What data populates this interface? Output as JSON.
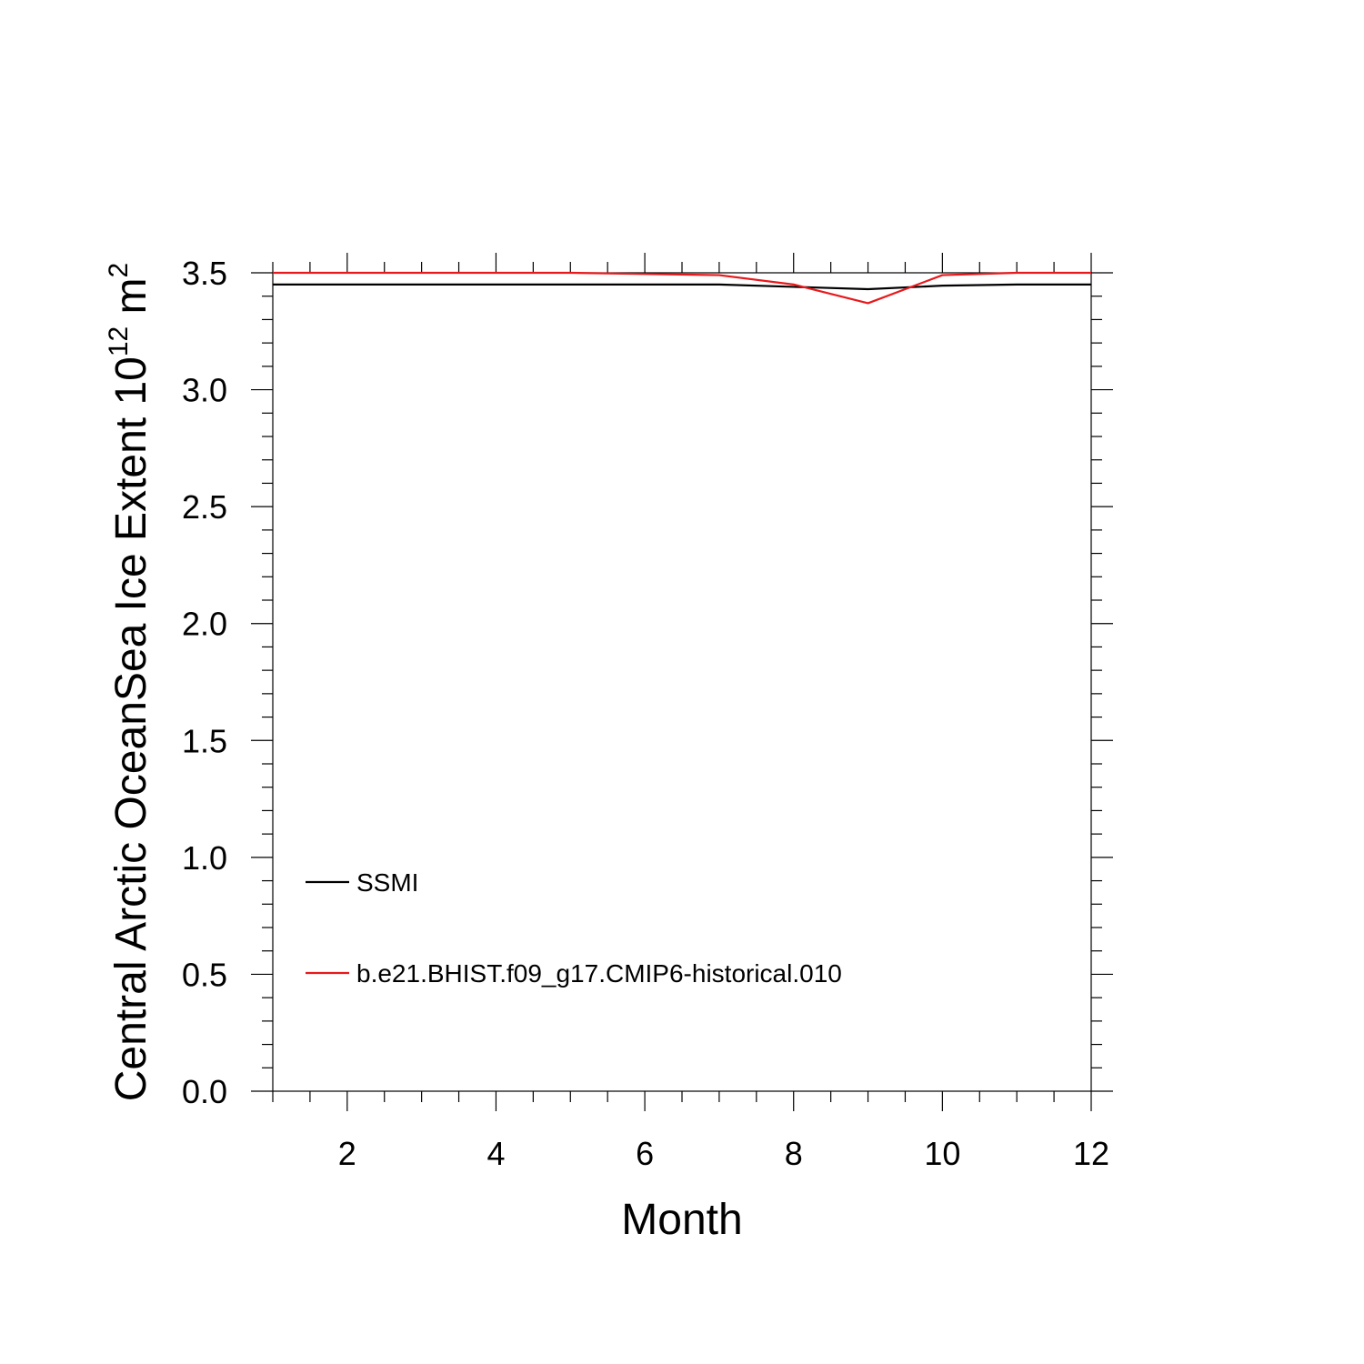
{
  "chart_data": {
    "type": "line",
    "title": "",
    "xlabel": "Month",
    "ylabel": "Central Arctic OceanSea Ice Extent 10",
    "ylabel_sup": "12",
    "ylabel_unit": " m",
    "ylabel_unit_sup": "2",
    "xlim": [
      1,
      12
    ],
    "ylim": [
      0,
      3.5
    ],
    "x_ticks": [
      2,
      4,
      6,
      8,
      10,
      12
    ],
    "x_tick_labels": [
      "2",
      "4",
      "6",
      "8",
      "10",
      "12"
    ],
    "y_ticks": [
      0,
      0.5,
      1,
      1.5,
      2,
      2.5,
      3,
      3.5
    ],
    "y_tick_labels": [
      "0.0",
      "0.5",
      "1.0",
      "1.5",
      "2.0",
      "2.5",
      "3.0",
      "3.5"
    ],
    "grid": false,
    "legend_position": "lower-left",
    "x": [
      1,
      2,
      3,
      4,
      5,
      6,
      7,
      8,
      9,
      10,
      11,
      12
    ],
    "series": [
      {
        "name": "SSMI",
        "color": "#000000",
        "values": [
          3.45,
          3.45,
          3.45,
          3.45,
          3.45,
          3.45,
          3.45,
          3.44,
          3.43,
          3.445,
          3.45,
          3.45
        ]
      },
      {
        "name": "b.e21.BHIST.f09_g17.CMIP6-historical.010",
        "color": "#e8191c",
        "values": [
          3.5,
          3.5,
          3.5,
          3.5,
          3.5,
          3.495,
          3.49,
          3.45,
          3.37,
          3.49,
          3.5,
          3.5
        ]
      }
    ]
  }
}
